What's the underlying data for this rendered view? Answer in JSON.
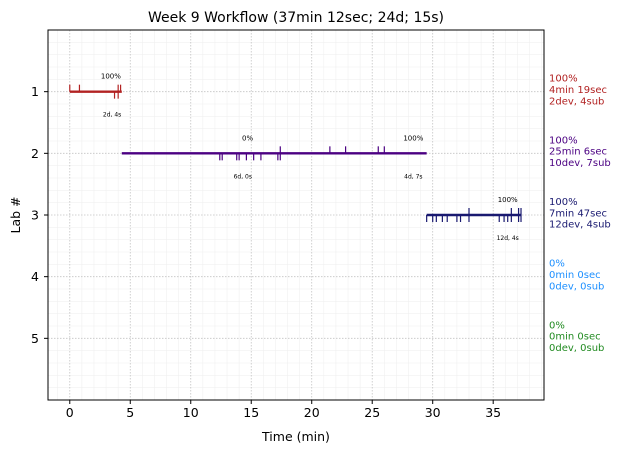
{
  "chart_data": {
    "type": "timeline",
    "title": "Week 9 Workflow (37min 12sec; 24d; 15s)",
    "xlabel": "Time (min)",
    "ylabel": "Lab #",
    "xlim": [
      -1.8,
      39.2
    ],
    "ylim": [
      0,
      6
    ],
    "xticks": [
      0,
      5,
      10,
      15,
      20,
      25,
      30,
      35
    ],
    "yticks": [
      1,
      2,
      3,
      4,
      5
    ],
    "grid": true,
    "labs": [
      {
        "lab": 1,
        "color": "#b22222",
        "start": 0.0,
        "end": 4.3,
        "progress_labels": [
          {
            "x": 3.4,
            "text": "100%"
          }
        ],
        "count_labels": [
          {
            "x": 3.5,
            "text": "2d, 4s"
          }
        ],
        "up_ticks": [
          0.0,
          0.8,
          4.0,
          4.2
        ],
        "down_ticks": [
          3.7,
          4.0
        ],
        "summary": [
          "100%",
          "4min 19sec",
          "2dev, 4sub"
        ]
      },
      {
        "lab": 2,
        "color": "#4b0082",
        "start": 4.3,
        "end": 29.5,
        "progress_labels": [
          {
            "x": 14.7,
            "text": "0%"
          },
          {
            "x": 28.4,
            "text": "100%"
          }
        ],
        "count_labels": [
          {
            "x": 14.3,
            "text": "6d, 0s"
          },
          {
            "x": 28.4,
            "text": "4d, 7s"
          }
        ],
        "up_ticks": [
          17.4,
          21.5,
          22.8,
          25.5,
          26.0
        ],
        "down_ticks": [
          12.4,
          12.6,
          13.8,
          14.0,
          14.6,
          15.2,
          15.8,
          17.2,
          17.4
        ],
        "summary": [
          "100%",
          "25min 6sec",
          "10dev, 7sub"
        ]
      },
      {
        "lab": 3,
        "color": "#191970",
        "start": 29.5,
        "end": 37.3,
        "progress_labels": [
          {
            "x": 36.2,
            "text": "100%"
          }
        ],
        "count_labels": [
          {
            "x": 36.2,
            "text": "12d, 4s"
          }
        ],
        "up_ticks": [
          33.0,
          36.5,
          37.1,
          37.3
        ],
        "down_ticks": [
          29.5,
          30.0,
          30.3,
          30.8,
          31.2,
          32.0,
          32.3,
          33.0,
          35.5,
          35.9,
          36.2,
          36.5,
          37.1,
          37.3
        ],
        "summary": [
          "100%",
          "7min 47sec",
          "12dev, 4sub"
        ]
      },
      {
        "lab": 4,
        "color": "#1e90ff",
        "summary": [
          "0%",
          "0min 0sec",
          "0dev, 0sub"
        ]
      },
      {
        "lab": 5,
        "color": "#228b22",
        "summary": [
          "0%",
          "0min 0sec",
          "0dev, 0sub"
        ]
      }
    ]
  }
}
